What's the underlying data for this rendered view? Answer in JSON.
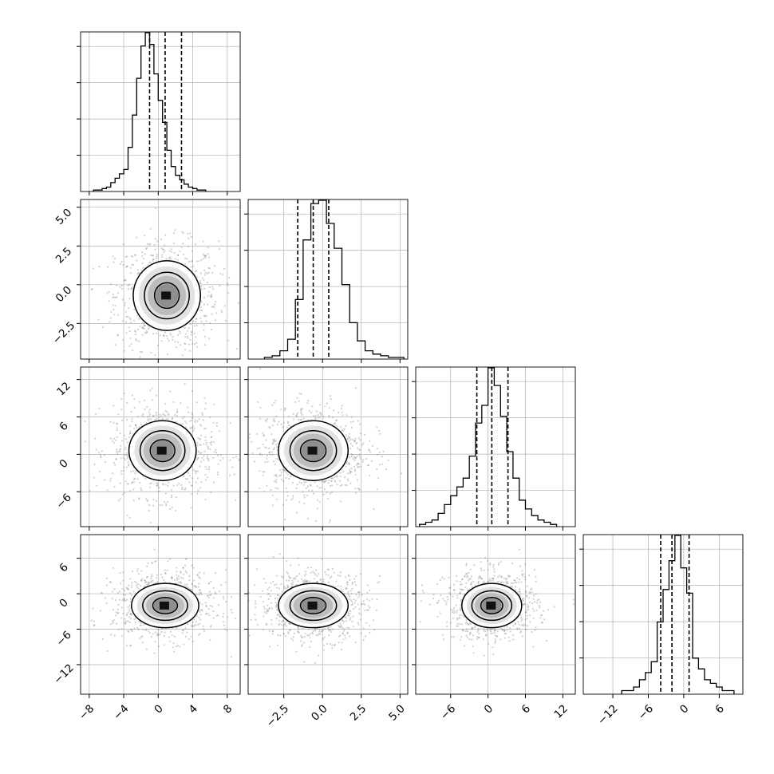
{
  "chart_data": {
    "type": "corner",
    "n_dims": 4,
    "colors": {
      "line": "#000000",
      "grid": "#b0b0b0",
      "points": "#7a7a7a",
      "background": "#ffffff"
    },
    "grid": true,
    "quantile_lines": "dashed",
    "variables": [
      {
        "range": [
          -9,
          9.5
        ],
        "ticks": [
          -8,
          -4,
          0,
          4,
          8
        ],
        "tick_labels": [
          "−8",
          "−4",
          "0",
          "4",
          "8"
        ],
        "quantiles": [
          -1.0,
          0.8,
          2.7
        ],
        "hist": {
          "start": -7.5,
          "step": 0.5,
          "counts": [
            1,
            1,
            2,
            3,
            6,
            9,
            12,
            15,
            30,
            52,
            77,
            99,
            108,
            100,
            80,
            62,
            47,
            28,
            17,
            11,
            8,
            5,
            3,
            2,
            1,
            1
          ]
        }
      },
      {
        "range": [
          -4.8,
          5.5
        ],
        "ticks": [
          -2.5,
          0.0,
          2.5,
          5.0
        ],
        "tick_labels": [
          "−2.5",
          "0.0",
          "2.5",
          "5.0"
        ],
        "quantiles": [
          -1.6,
          -0.6,
          0.4
        ],
        "hist": {
          "start": -3.75,
          "step": 0.5,
          "counts": [
            1,
            2,
            5,
            12,
            36,
            72,
            94,
            96,
            82,
            67,
            45,
            22,
            11,
            5,
            3,
            2,
            1,
            1
          ]
        }
      },
      {
        "range": [
          -11.6,
          14
        ],
        "ticks": [
          -6,
          0,
          6,
          12
        ],
        "tick_labels": [
          "−6",
          "0",
          "6",
          "12"
        ],
        "quantiles": [
          -1.8,
          0.6,
          3.2
        ],
        "hist": {
          "start": -11,
          "step": 1,
          "counts": [
            1,
            2,
            3,
            6,
            10,
            14,
            18,
            22,
            32,
            47,
            55,
            72,
            64,
            50,
            34,
            22,
            12,
            8,
            5,
            3,
            2,
            1
          ]
        }
      },
      {
        "range": [
          -17,
          10
        ],
        "ticks": [
          -12,
          -6,
          0,
          6
        ],
        "tick_labels": [
          "−12",
          "−6",
          "0",
          "6"
        ],
        "quantiles": [
          -3.9,
          -2.0,
          0.9
        ],
        "hist": {
          "start": -10.5,
          "step": 1,
          "counts": [
            1,
            1,
            2,
            4,
            6,
            9,
            20,
            29,
            37,
            44,
            35,
            28,
            10,
            7,
            4,
            3,
            2,
            1,
            1
          ]
        }
      }
    ],
    "row_tick_labels": {
      "1": [
        "5.0",
        "2.5",
        "0.0",
        "−2.5"
      ],
      "2": [
        "12",
        "6",
        "0",
        "−6"
      ],
      "3": [
        "6",
        "0",
        "−6",
        "−12"
      ]
    },
    "row_tick_values": {
      "1": [
        5.0,
        2.5,
        0.0,
        -2.5
      ],
      "2": [
        12,
        6,
        0,
        -6
      ],
      "3": [
        6,
        0,
        -6,
        -12
      ]
    },
    "pairs": [
      {
        "row": 1,
        "col": 0,
        "mean": [
          1.0,
          -0.7
        ],
        "sd": [
          2.6,
          1.5
        ]
      },
      {
        "row": 2,
        "col": 0,
        "mean": [
          0.5,
          0.6
        ],
        "sd": [
          2.6,
          3.2
        ]
      },
      {
        "row": 2,
        "col": 1,
        "mean": [
          -0.6,
          0.6
        ],
        "sd": [
          1.5,
          3.2
        ]
      },
      {
        "row": 3,
        "col": 0,
        "mean": [
          0.8,
          -2.0
        ],
        "sd": [
          2.6,
          2.5
        ]
      },
      {
        "row": 3,
        "col": 1,
        "mean": [
          -0.6,
          -2.0
        ],
        "sd": [
          1.5,
          2.5
        ]
      },
      {
        "row": 3,
        "col": 2,
        "mean": [
          0.6,
          -2.0
        ],
        "sd": [
          3.2,
          2.5
        ]
      }
    ]
  }
}
